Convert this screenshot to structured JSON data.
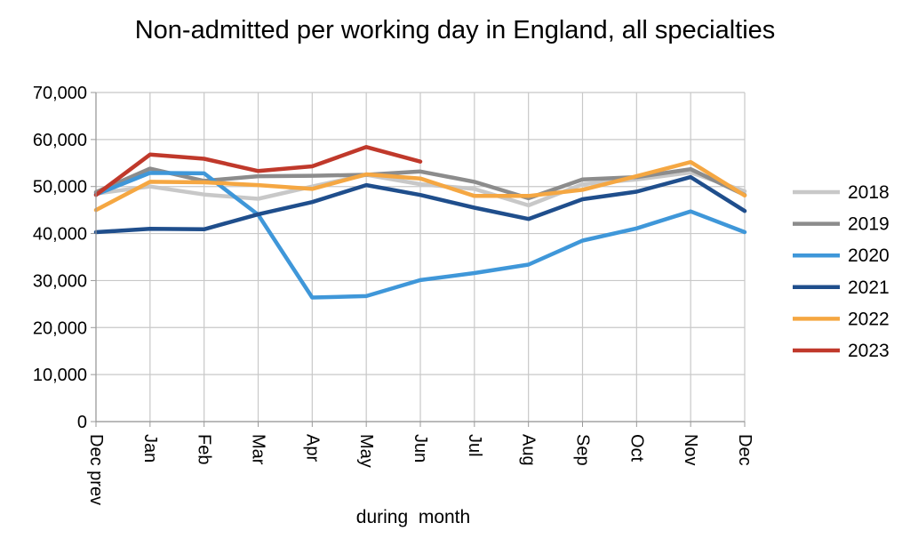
{
  "chart_data": {
    "type": "line",
    "title": "Non-admitted per working day in England, all specialties",
    "xlabel": "during  month",
    "ylabel": "",
    "categories": [
      "Dec prev",
      "Jan",
      "Feb",
      "Mar",
      "Apr",
      "May",
      "Jun",
      "Jul",
      "Aug",
      "Sep",
      "Oct",
      "Nov",
      "Dec"
    ],
    "ylim": [
      0,
      70000
    ],
    "yticks": [
      0,
      10000,
      20000,
      30000,
      40000,
      50000,
      60000,
      70000
    ],
    "ytick_labels": [
      "0",
      "10,000",
      "20,000",
      "30,000",
      "40,000",
      "50,000",
      "60,000",
      "70,000"
    ],
    "grid": true,
    "legend_position": "right",
    "series": [
      {
        "name": "2018",
        "color": "#c8c8c8",
        "values": [
          48500,
          50000,
          48300,
          47400,
          50000,
          52500,
          50500,
          49500,
          46000,
          50500,
          51500,
          53000,
          49000
        ]
      },
      {
        "name": "2019",
        "color": "#8c8c8c",
        "values": [
          48800,
          53800,
          51200,
          52200,
          52300,
          52500,
          53200,
          51000,
          47500,
          51500,
          52000,
          53700,
          48200
        ]
      },
      {
        "name": "2020",
        "color": "#3f97d9",
        "values": [
          48300,
          52900,
          52800,
          44000,
          26400,
          26700,
          30100,
          31600,
          33400,
          38500,
          41100,
          44700,
          40300
        ]
      },
      {
        "name": "2021",
        "color": "#1f4e8c",
        "values": [
          40300,
          41000,
          40900,
          44100,
          46700,
          50300,
          48200,
          45500,
          43100,
          47300,
          48900,
          52000,
          44800
        ]
      },
      {
        "name": "2022",
        "color": "#f5a742",
        "values": [
          45000,
          51000,
          50900,
          50300,
          49500,
          52600,
          51700,
          48000,
          48000,
          49300,
          52200,
          55200,
          48100
        ]
      },
      {
        "name": "2023",
        "color": "#c0392b",
        "values": [
          48200,
          56800,
          55900,
          53300,
          54300,
          58400,
          55300,
          null,
          null,
          null,
          null,
          null,
          null
        ]
      }
    ]
  }
}
